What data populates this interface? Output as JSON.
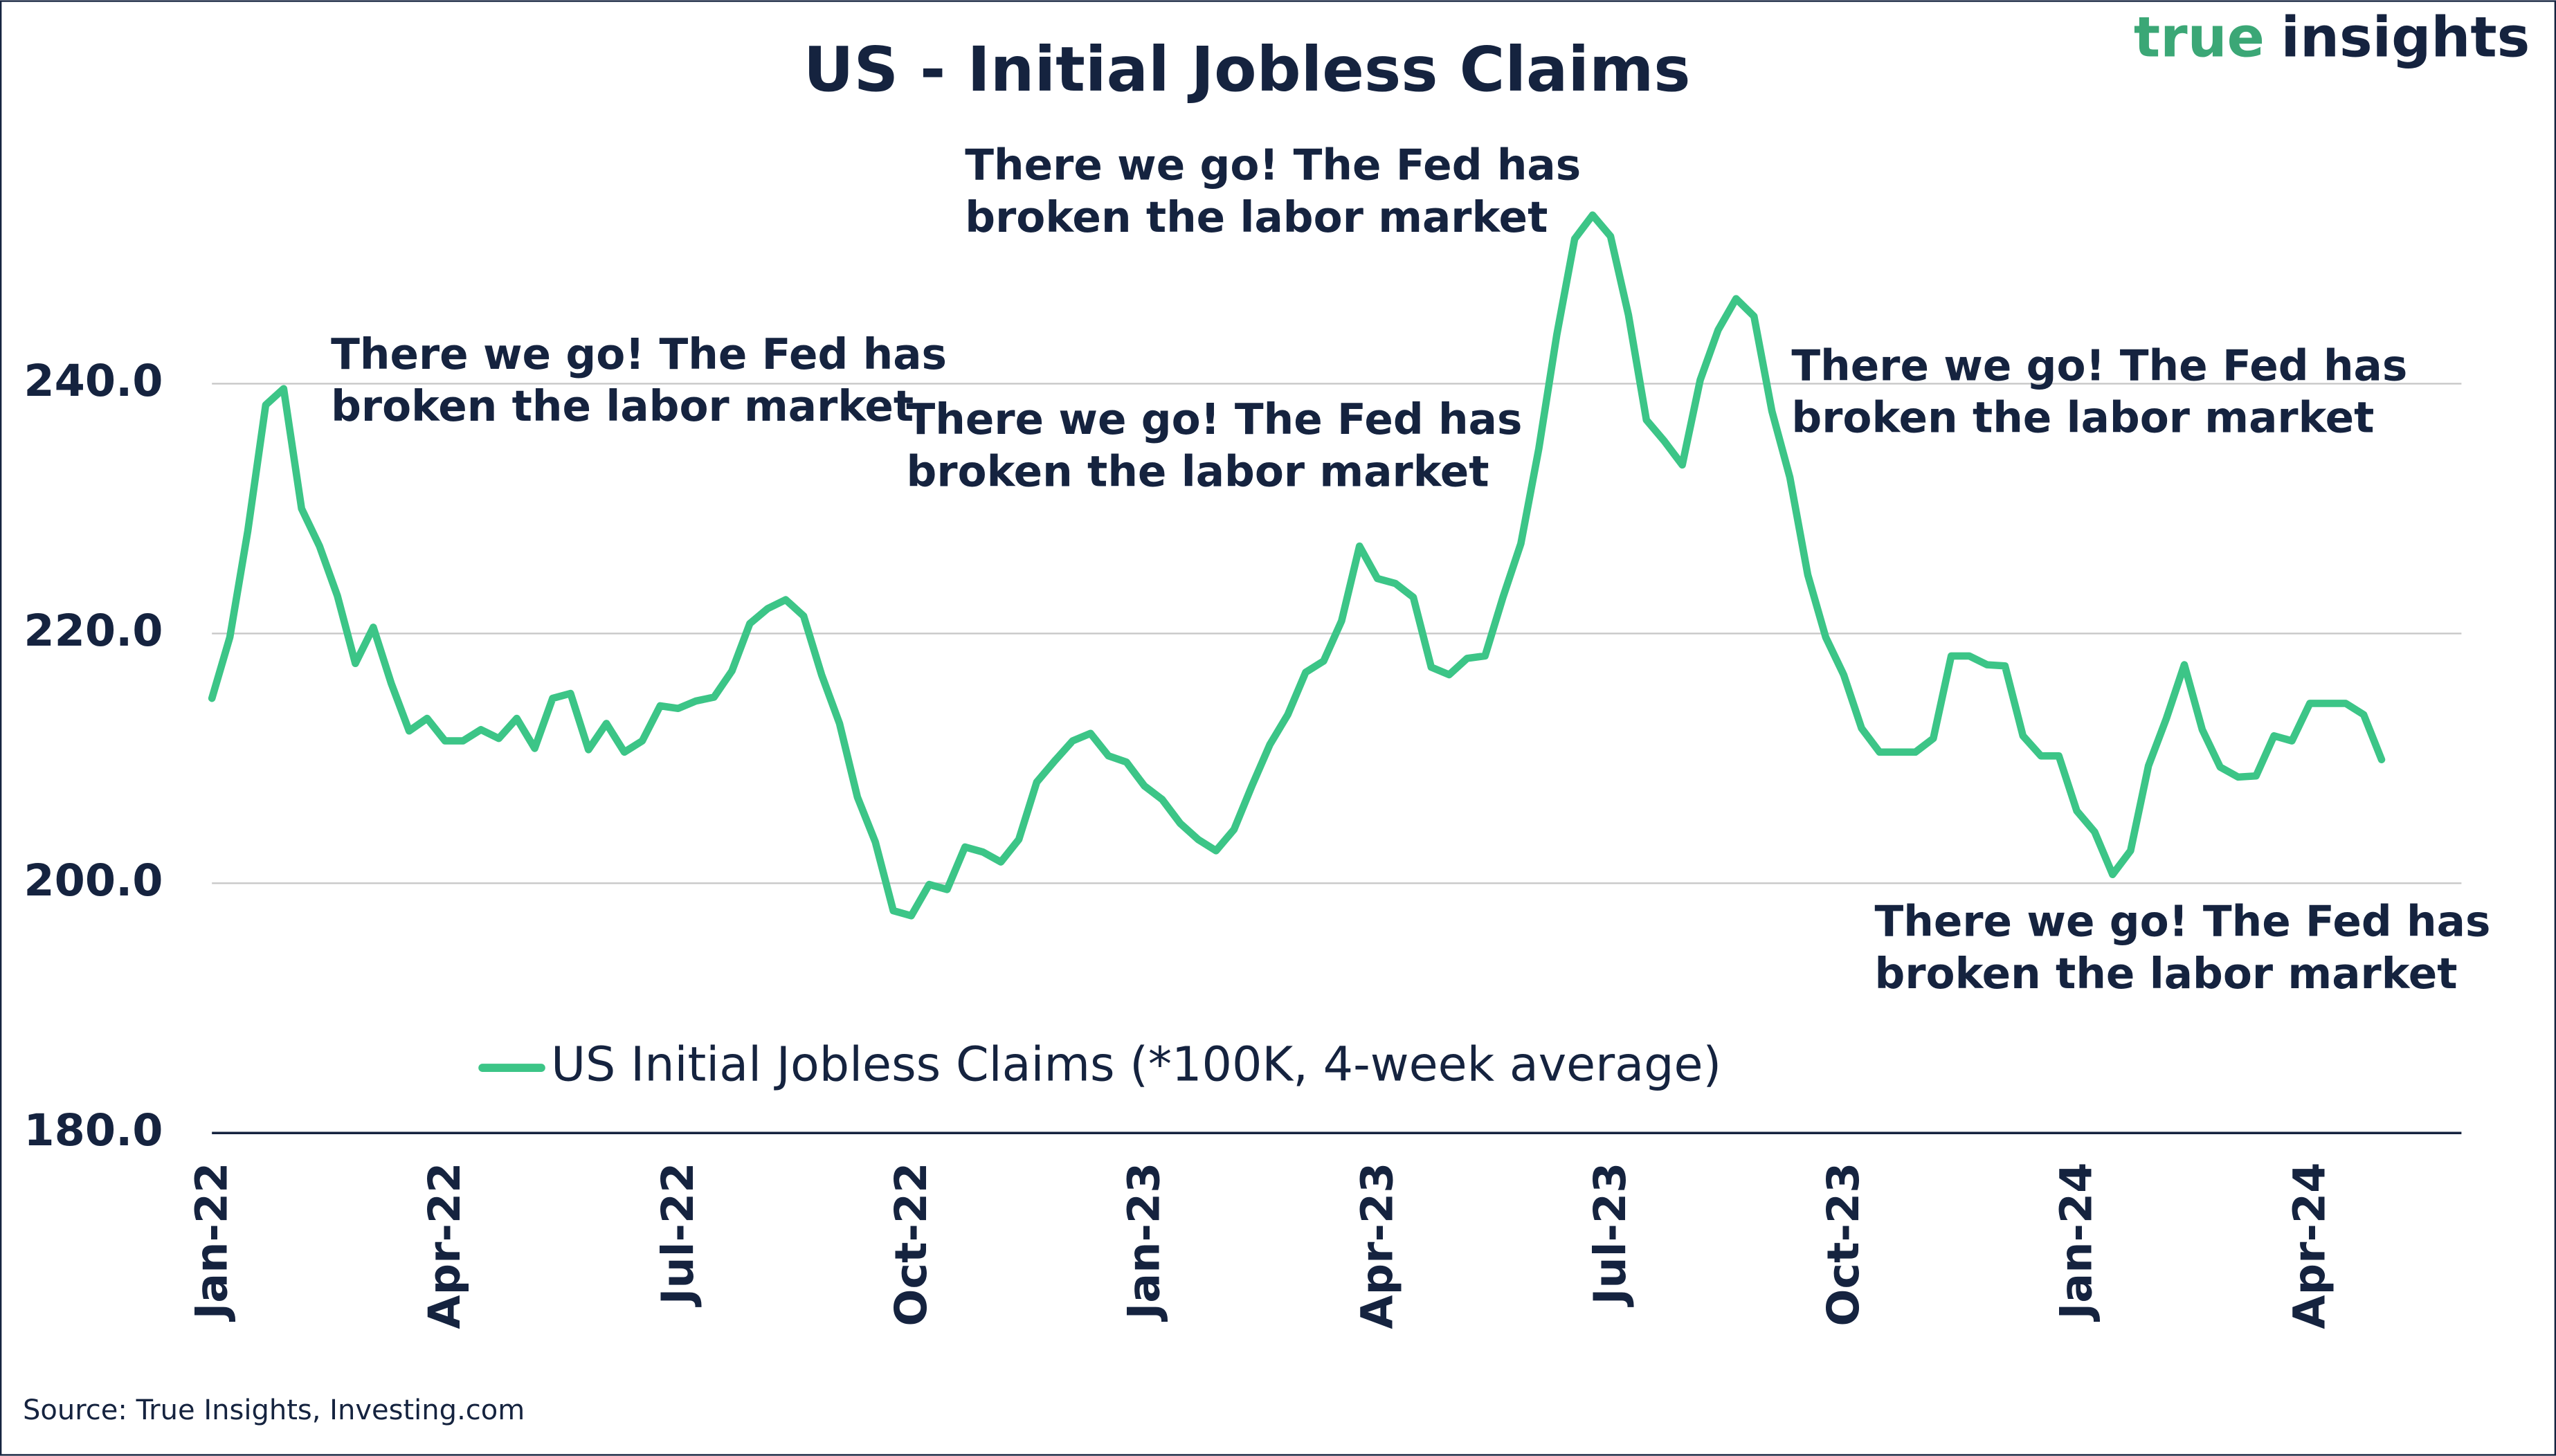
{
  "chart_data": {
    "type": "line",
    "title": "US - Initial Jobless Claims",
    "logo": [
      "true",
      "insights"
    ],
    "source": "Source: True Insights, Investing.com",
    "categories": [
      "Jan-22",
      null,
      null,
      null,
      null,
      null,
      null,
      null,
      null,
      null,
      null,
      null,
      null,
      "Apr-22",
      null,
      null,
      null,
      null,
      null,
      null,
      null,
      null,
      null,
      null,
      null,
      null,
      "Jul-22",
      null,
      null,
      null,
      null,
      null,
      null,
      null,
      null,
      null,
      null,
      null,
      null,
      "Oct-22",
      null,
      null,
      null,
      null,
      null,
      null,
      null,
      null,
      null,
      null,
      null,
      null,
      "Jan-23",
      null,
      null,
      null,
      null,
      null,
      null,
      null,
      null,
      null,
      null,
      null,
      null,
      "Apr-23",
      null,
      null,
      null,
      null,
      null,
      null,
      null,
      null,
      null,
      null,
      null,
      null,
      "Jul-23",
      null,
      null,
      null,
      null,
      null,
      null,
      null,
      null,
      null,
      null,
      null,
      null,
      "Oct-23",
      null,
      null,
      null,
      null,
      null,
      null,
      null,
      null,
      null,
      null,
      null,
      null,
      "Jan-24",
      null,
      null,
      null,
      null,
      null,
      null,
      null,
      null,
      null,
      null,
      null,
      null,
      "Apr-24",
      null,
      null,
      null,
      null
    ],
    "series": [
      {
        "name": "US Initial Jobless Claims (*100K, 4-week average)",
        "color": "#3cc587",
        "values": [
          214.8,
          219.7,
          228.2,
          238.3,
          239.6,
          230,
          227,
          223,
          217.6,
          220.5,
          216,
          212.2,
          213.2,
          211.4,
          211.4,
          212.3,
          211.6,
          213.2,
          210.8,
          214.8,
          215.2,
          210.7,
          212.8,
          210.5,
          211.4,
          214.2,
          214,
          214.6,
          214.9,
          217,
          220.8,
          222,
          222.7,
          221.4,
          216.7,
          212.8,
          206.9,
          203.3,
          197.8,
          197.4,
          199.9,
          199.5,
          202.9,
          202.5,
          201.7,
          203.5,
          208.1,
          209.8,
          211.4,
          212,
          210.2,
          209.7,
          207.8,
          206.7,
          204.8,
          203.5,
          202.6,
          204.3,
          207.8,
          211.1,
          213.5,
          216.9,
          217.8,
          221,
          227,
          224.4,
          224,
          222.9,
          217.3,
          216.7,
          218,
          218.2,
          222.9,
          227.2,
          234.8,
          243.9,
          251.6,
          253.5,
          251.8,
          245.5,
          237.1,
          235.4,
          233.5,
          240.3,
          244.3,
          246.8,
          245.4,
          237.8,
          232.5,
          224.7,
          219.7,
          216.7,
          212.4,
          210.5,
          210.5,
          210.5,
          211.6,
          218.2,
          218.2,
          217.5,
          217.4,
          211.8,
          210.2,
          210.2,
          205.8,
          204.1,
          200.7,
          202.6,
          209.4,
          213.2,
          217.5,
          212.3,
          209.3,
          208.5,
          208.6,
          211.8,
          211.4,
          214.4,
          214.4,
          214.4,
          213.5,
          209.9
        ]
      }
    ],
    "ylim": [
      180,
      260
    ],
    "yticks": [
      {
        "value": 180,
        "label": "180.0"
      },
      {
        "value": 200,
        "label": "200.0"
      },
      {
        "value": 220,
        "label": "220.0"
      },
      {
        "value": 240,
        "label": "240.0"
      }
    ],
    "grid": true,
    "legend": "lower center",
    "annotations": [
      [
        "There we go! The Fed has",
        "broken the labor market"
      ],
      [
        "There we go! The Fed has",
        "broken the labor market"
      ],
      [
        "There we go! The Fed has",
        "broken the labor market"
      ],
      [
        "There we go! The Fed has",
        "broken the labor market"
      ],
      [
        "There we go! The Fed has",
        "broken the labor market"
      ]
    ]
  }
}
